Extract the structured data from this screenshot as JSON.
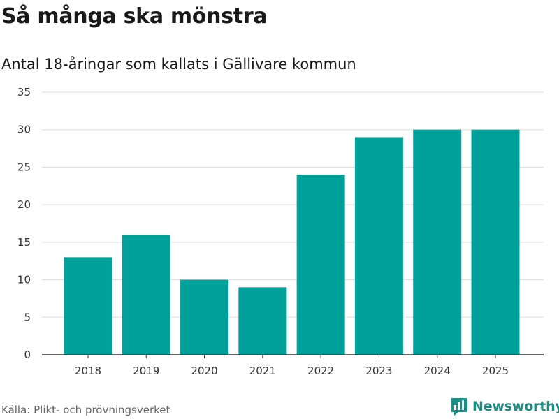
{
  "header": {
    "title": "Så många ska mönstra",
    "subtitle": "Antal 18-åringar som kallats i Gällivare kommun"
  },
  "footer": {
    "source": "Källa: Plikt- och prövningsverket",
    "brand": "Newsworthy",
    "brand_icon": "newsworthy-logo-icon"
  },
  "colors": {
    "bar": "#00a19a",
    "grid": "#dddddd",
    "axis": "#333333",
    "brand": "#1e8d83"
  },
  "chart_data": {
    "type": "bar",
    "title": "",
    "xlabel": "",
    "ylabel": "",
    "categories": [
      "2018",
      "2019",
      "2020",
      "2021",
      "2022",
      "2023",
      "2024",
      "2025"
    ],
    "values": [
      13,
      16,
      10,
      9,
      24,
      29,
      30,
      30
    ],
    "ylim": [
      0,
      35
    ],
    "yticks": [
      0,
      5,
      10,
      15,
      20,
      25,
      30,
      35
    ],
    "grid": true,
    "legend": "none"
  }
}
